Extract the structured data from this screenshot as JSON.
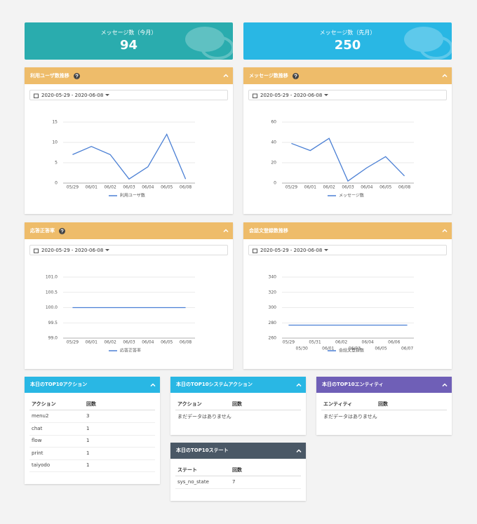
{
  "stats": [
    {
      "label": "メッセージ数（今月）",
      "value": 94,
      "color": "#2aacae"
    },
    {
      "label": "メッセージ数（先月）",
      "value": 250,
      "color": "#29b7e4"
    }
  ],
  "charts": [
    {
      "type": "line",
      "title": "利用ユーザ数推移",
      "help": true,
      "date_range": "2020-05-29 - 2020-06-08",
      "categories": [
        "05/29",
        "06/01",
        "06/02",
        "06/03",
        "06/04",
        "06/05",
        "06/08"
      ],
      "series": [
        {
          "name": "利用ユーザ数",
          "color": "#4a7fd4",
          "values": [
            7,
            9,
            7,
            1,
            4,
            12,
            1
          ]
        }
      ],
      "ylim": [
        0,
        15
      ],
      "yticks": [
        0,
        5,
        10,
        15
      ],
      "grid": true
    },
    {
      "type": "line",
      "title": "メッセージ数推移",
      "help": true,
      "date_range": "2020-05-29 - 2020-06-08",
      "categories": [
        "05/29",
        "06/01",
        "06/02",
        "06/03",
        "06/04",
        "06/05",
        "06/08"
      ],
      "series": [
        {
          "name": "メッセージ数",
          "color": "#4a7fd4",
          "values": [
            39,
            32,
            44,
            2,
            15,
            26,
            7
          ]
        }
      ],
      "ylim": [
        0,
        60
      ],
      "yticks": [
        0,
        20,
        40,
        60
      ],
      "grid": true
    },
    {
      "type": "line",
      "title": "応答正答率",
      "help": true,
      "date_range": "2020-05-29 - 2020-06-08",
      "categories": [
        "05/29",
        "06/01",
        "06/02",
        "06/03",
        "06/04",
        "06/05",
        "06/08"
      ],
      "series": [
        {
          "name": "応答正答率",
          "color": "#4a7fd4",
          "values": [
            100,
            100,
            100,
            100,
            100,
            100,
            100
          ]
        }
      ],
      "ylim": [
        99,
        101
      ],
      "yticks": [
        {
          "value": 99,
          "label": "99.0"
        },
        99.5,
        {
          "value": 100,
          "label": "100.0"
        },
        100.5,
        {
          "value": 101,
          "label": "101.0"
        }
      ],
      "grid": true
    },
    {
      "type": "line",
      "title": "会話文登録数推移",
      "help": false,
      "date_range": "2020-05-29 - 2020-06-08",
      "categories": [
        "05/29",
        "05/30",
        "05/31",
        "06/01",
        "06/02",
        "06/03",
        "06/04",
        "06/05",
        "06/06",
        "06/07"
      ],
      "series": [
        {
          "name": "会話文登録数",
          "color": "#4a7fd4",
          "values": [
            277,
            277,
            277,
            277,
            277,
            277,
            277,
            277,
            277,
            277
          ]
        }
      ],
      "ylim": [
        260,
        340
      ],
      "yticks": [
        260,
        280,
        300,
        320,
        340
      ],
      "grid": true
    }
  ],
  "tables": [
    {
      "title": "本日のTOP10アクション",
      "color": "#29b7e4",
      "columns": [
        "アクション",
        "回数"
      ],
      "rows": [
        [
          "menu2",
          3
        ],
        [
          "chat",
          1
        ],
        [
          "flow",
          1
        ],
        [
          "print",
          1
        ],
        [
          "taiyodo",
          1
        ]
      ]
    },
    {
      "title": "本日のTOP10システムアクション",
      "color": "#29b7e4",
      "columns": [
        "アクション",
        "回数"
      ],
      "empty_text": "まだデータはありません"
    },
    {
      "title": "本日のTOP10エンティティ",
      "color": "#6f5fb7",
      "columns": [
        "エンティティ",
        "回数"
      ],
      "empty_text": "まだデータはありません"
    },
    {
      "title": "本日のTOP10ステート",
      "color": "#4a5866",
      "columns": [
        "ステート",
        "回数"
      ],
      "rows": [
        [
          "sys_no_state",
          7
        ]
      ]
    }
  ]
}
